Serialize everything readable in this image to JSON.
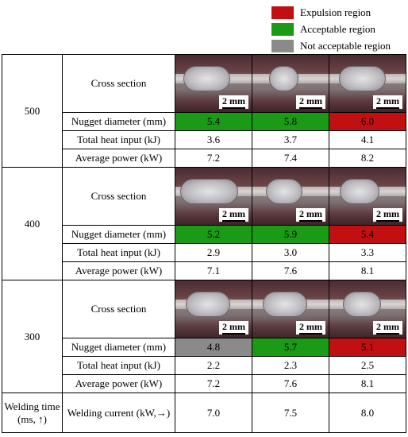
{
  "legend": [
    {
      "label": "Expulsion region",
      "color": "#c20f12"
    },
    {
      "label": "Acceptable region",
      "color": "#1b9a16"
    },
    {
      "label": "Not acceptable region",
      "color": "#8a8a8a"
    }
  ],
  "labels": {
    "cross_section": "Cross section",
    "nugget": "Nugget diameter (mm)",
    "heat": "Total heat input (kJ)",
    "power": "Average power (kW)",
    "scale": "2 mm",
    "time_header": "Welding time (ms, ↑)",
    "current_header": "Welding current (kW,→)"
  },
  "currents": [
    "7.0",
    "7.5",
    "8.0"
  ],
  "groups": [
    {
      "time": "500",
      "nugget": [
        {
          "value": "5.4",
          "region": "acceptable"
        },
        {
          "value": "5.8",
          "region": "acceptable"
        },
        {
          "value": "6.0",
          "region": "expulsion"
        }
      ],
      "heat": [
        "3.6",
        "3.7",
        "4.1"
      ],
      "power": [
        "7.2",
        "7.4",
        "8.2"
      ]
    },
    {
      "time": "400",
      "nugget": [
        {
          "value": "5.2",
          "region": "acceptable"
        },
        {
          "value": "5.9",
          "region": "acceptable"
        },
        {
          "value": "5.4",
          "region": "expulsion"
        }
      ],
      "heat": [
        "2.9",
        "3.0",
        "3.3"
      ],
      "power": [
        "7.1",
        "7.6",
        "8.1"
      ]
    },
    {
      "time": "300",
      "nugget": [
        {
          "value": "4.8",
          "region": "not-acceptable"
        },
        {
          "value": "5.7",
          "region": "acceptable"
        },
        {
          "value": "5.1",
          "region": "expulsion"
        }
      ],
      "heat": [
        "2.2",
        "2.3",
        "2.5"
      ],
      "power": [
        "7.2",
        "7.6",
        "8.1"
      ]
    }
  ]
}
